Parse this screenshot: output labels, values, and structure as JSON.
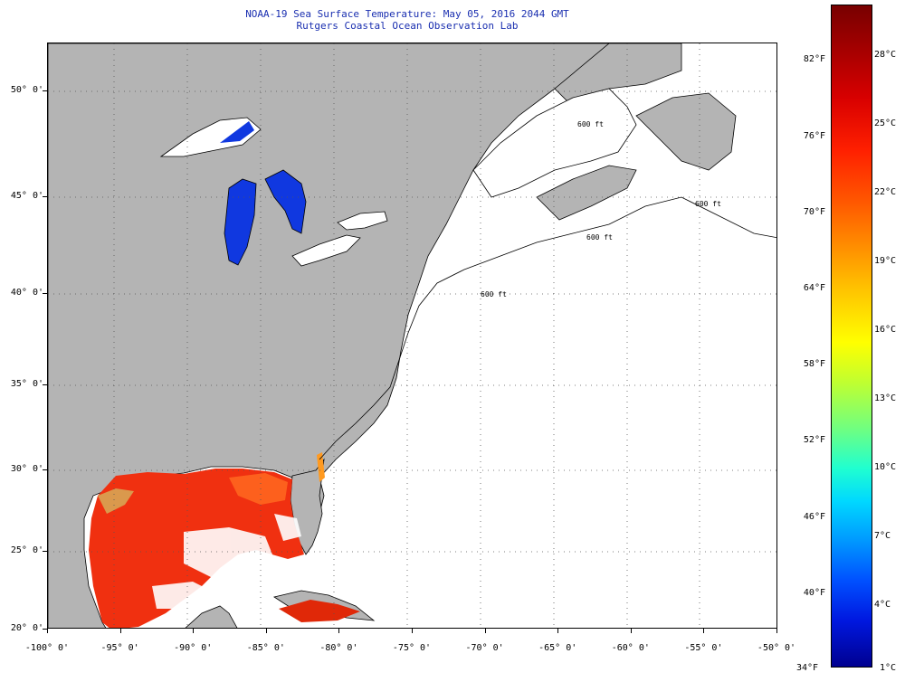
{
  "header": {
    "title_line1": "NOAA-19 Sea Surface Temperature:  May 05, 2016 2044 GMT",
    "title_line2": "Rutgers Coastal Ocean Observation Lab"
  },
  "map": {
    "lon_range": [
      -100,
      -50
    ],
    "lat_range": [
      20,
      52.5
    ],
    "latitude_labels": [
      {
        "lat": 50,
        "text": "50° 0'"
      },
      {
        "lat": 45,
        "text": "45° 0'"
      },
      {
        "lat": 40,
        "text": "40° 0'"
      },
      {
        "lat": 35,
        "text": "35° 0'"
      },
      {
        "lat": 30,
        "text": "30° 0'"
      },
      {
        "lat": 25,
        "text": "25° 0'"
      },
      {
        "lat": 20,
        "text": "20° 0'"
      }
    ],
    "longitude_labels": [
      {
        "lon": -100,
        "text": "-100° 0'"
      },
      {
        "lon": -95,
        "text": "-95° 0'"
      },
      {
        "lon": -90,
        "text": "-90° 0'"
      },
      {
        "lon": -85,
        "text": "-85° 0'"
      },
      {
        "lon": -80,
        "text": "-80° 0'"
      },
      {
        "lon": -75,
        "text": "-75° 0'"
      },
      {
        "lon": -70,
        "text": "-70° 0'"
      },
      {
        "lon": -65,
        "text": "-65° 0'"
      },
      {
        "lon": -60,
        "text": "-60° 0'"
      },
      {
        "lon": -55,
        "text": "-55° 0'"
      },
      {
        "lon": -50,
        "text": "-50° 0'"
      }
    ],
    "depth_contour_labels": [
      "600 ft",
      "600 ft",
      "600 ft",
      "600 ft"
    ],
    "colors": {
      "land": "#b4b4b4",
      "no_data": "#ffffff",
      "gulf_water": "#f03010",
      "great_lakes": "#1038e0"
    }
  },
  "colorbar": {
    "fahrenheit_labels": [
      {
        "pos": 0.0836,
        "text": "82°F"
      },
      {
        "pos": 0.1986,
        "text": "76°F"
      },
      {
        "pos": 0.3134,
        "text": "70°F"
      },
      {
        "pos": 0.4284,
        "text": "64°F"
      },
      {
        "pos": 0.5432,
        "text": "58°F"
      },
      {
        "pos": 0.6582,
        "text": "52°F"
      },
      {
        "pos": 0.773,
        "text": "46°F"
      },
      {
        "pos": 0.888,
        "text": "40°F"
      }
    ],
    "celsius_labels": [
      {
        "pos": 0.0764,
        "text": "28°C"
      },
      {
        "pos": 0.18,
        "text": "25°C"
      },
      {
        "pos": 0.2838,
        "text": "22°C"
      },
      {
        "pos": 0.3874,
        "text": "19°C"
      },
      {
        "pos": 0.4912,
        "text": "16°C"
      },
      {
        "pos": 0.5948,
        "text": "13°C"
      },
      {
        "pos": 0.6986,
        "text": "10°C"
      },
      {
        "pos": 0.8022,
        "text": "7°C"
      },
      {
        "pos": 0.9058,
        "text": "4°C"
      }
    ],
    "bottom_f": "34°F",
    "bottom_c": "1°C"
  }
}
